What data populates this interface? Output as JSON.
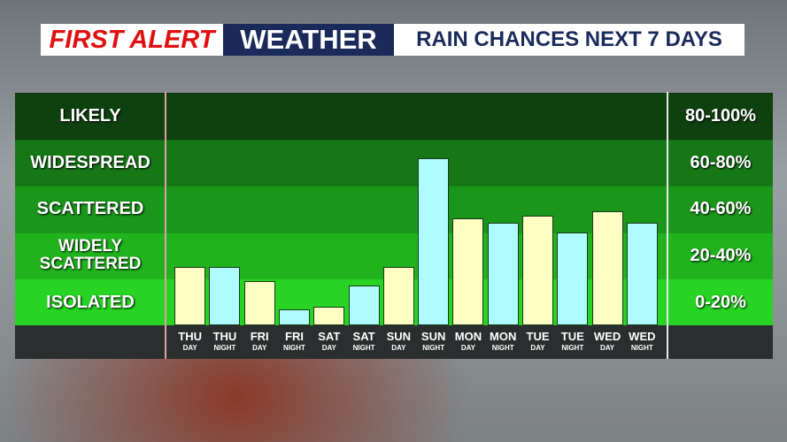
{
  "chart_data": {
    "type": "bar",
    "title_parts": [
      "FIRST ALERT",
      "WEATHER",
      "RAIN CHANCES NEXT 7 DAYS"
    ],
    "categories": [
      "THU",
      "THU",
      "FRI",
      "FRI",
      "SAT",
      "SAT",
      "SUN",
      "SUN",
      "MON",
      "MON",
      "TUE",
      "TUE",
      "WED",
      "WED"
    ],
    "periods": [
      "DAY",
      "NIGHT",
      "DAY",
      "NIGHT",
      "DAY",
      "NIGHT",
      "DAY",
      "NIGHT",
      "DAY",
      "NIGHT",
      "DAY",
      "NIGHT",
      "DAY",
      "NIGHT"
    ],
    "values": [
      25,
      25,
      19,
      7,
      8,
      17,
      25,
      72,
      46,
      44,
      47,
      40,
      49,
      44
    ],
    "period_colors": {
      "DAY": "#ffffc4",
      "NIGHT": "#aefcff"
    },
    "ylim": [
      0,
      100
    ],
    "yticks": [
      0,
      20,
      40,
      60,
      80,
      100
    ],
    "bands": [
      {
        "name": "ISOLATED",
        "range": "0-20%",
        "color": "#27d423"
      },
      {
        "name": "WIDELY SCATTERED",
        "range": "20-40%",
        "color": "#20b31e"
      },
      {
        "name": "SCATTERED",
        "range": "40-60%",
        "color": "#1a961a"
      },
      {
        "name": "WIDESPREAD",
        "range": "60-80%",
        "color": "#167716"
      },
      {
        "name": "LIKELY",
        "range": "80-100%",
        "color": "#0f400f"
      }
    ]
  }
}
